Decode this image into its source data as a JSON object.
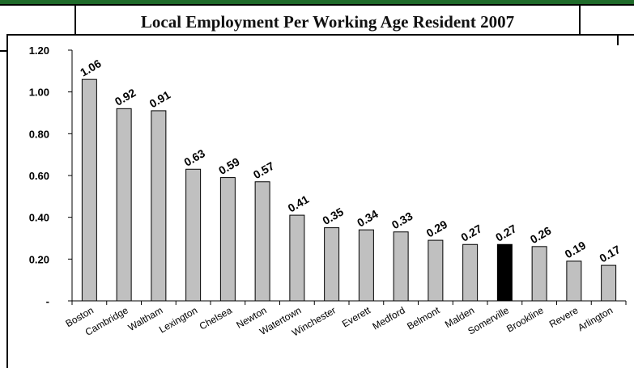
{
  "chart_data": {
    "type": "bar",
    "title": "Local Employment Per Working Age Resident 2007",
    "categories": [
      "Boston",
      "Cambridge",
      "Waltham",
      "Lexington",
      "Chelsea",
      "Newton",
      "Watertown",
      "Winchester",
      "Everett",
      "Medford",
      "Belmont",
      "Malden",
      "Somerville",
      "Brookline",
      "Revere",
      "Arlington"
    ],
    "values": [
      1.06,
      0.92,
      0.91,
      0.63,
      0.59,
      0.57,
      0.41,
      0.35,
      0.34,
      0.33,
      0.29,
      0.27,
      0.27,
      0.26,
      0.19,
      0.17
    ],
    "data_labels": [
      "1.06",
      "0.92",
      "0.91",
      "0.63",
      "0.59",
      "0.57",
      "0.41",
      "0.35",
      "0.34",
      "0.33",
      "0.29",
      "0.27",
      "0.27",
      "0.26",
      "0.19",
      "0.17"
    ],
    "y_ticks": [
      0,
      0.2,
      0.4,
      0.6,
      0.8,
      1.0,
      1.2
    ],
    "y_tick_labels": [
      "-",
      "0.20",
      "0.40",
      "0.60",
      "0.80",
      "1.00",
      "1.20"
    ],
    "ylim": [
      0,
      1.2
    ],
    "xlabel": "",
    "ylabel": "",
    "highlight_category": "Somerville",
    "grid": false,
    "legend": "none",
    "colors": {
      "bar": "#c0c0c0",
      "highlight_bar": "#000000",
      "bar_outline": "#000000",
      "text": "#000000",
      "header_band": "#1f6b2a"
    }
  }
}
